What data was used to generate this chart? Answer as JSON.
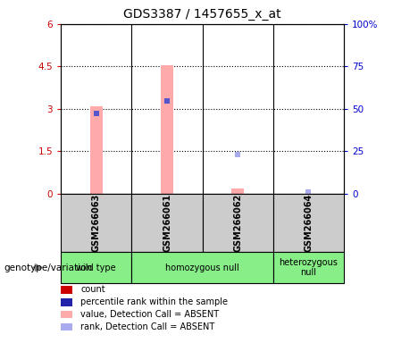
{
  "title": "GDS3387 / 1457655_x_at",
  "samples": [
    "GSM266063",
    "GSM266061",
    "GSM266062",
    "GSM266064"
  ],
  "bar_values_pink": [
    3.1,
    4.55,
    0.2,
    0.0
  ],
  "dot_blue_dark": [
    2.85,
    3.28,
    null,
    null
  ],
  "dot_blue_light": [
    null,
    null,
    1.38,
    0.07
  ],
  "ylim_left": [
    0,
    6
  ],
  "ylim_right": [
    0,
    100
  ],
  "yticks_left": [
    0,
    1.5,
    3.0,
    4.5,
    6
  ],
  "yticks_right": [
    0,
    25,
    50,
    75,
    100
  ],
  "ytick_labels_left": [
    "0",
    "1.5",
    "3",
    "4.5",
    "6"
  ],
  "ytick_labels_right": [
    "0",
    "25",
    "50",
    "75",
    "100%"
  ],
  "left_axis_color": "#cc0000",
  "right_axis_color": "#0000cc",
  "pink_bar_color": "#ffaaaa",
  "dark_blue_dot_color": "#5555cc",
  "light_blue_dot_color": "#aaaaee",
  "legend_items": [
    {
      "label": "count",
      "color": "#cc0000"
    },
    {
      "label": "percentile rank within the sample",
      "color": "#2222aa"
    },
    {
      "label": "value, Detection Call = ABSENT",
      "color": "#ffaaaa"
    },
    {
      "label": "rank, Detection Call = ABSENT",
      "color": "#aaaaee"
    }
  ],
  "genotype_label": "genotype/variation",
  "sample_box_color": "#cccccc",
  "green_color": "#88ee88",
  "groups": [
    {
      "label": "wild type",
      "start": 0,
      "end": 0
    },
    {
      "label": "homozygous null",
      "start": 1,
      "end": 2
    },
    {
      "label": "heterozygous\nnull",
      "start": 3,
      "end": 3
    }
  ],
  "bar_width": 0.18,
  "dot_size": 5,
  "title_fontsize": 10,
  "tick_fontsize": 7.5
}
